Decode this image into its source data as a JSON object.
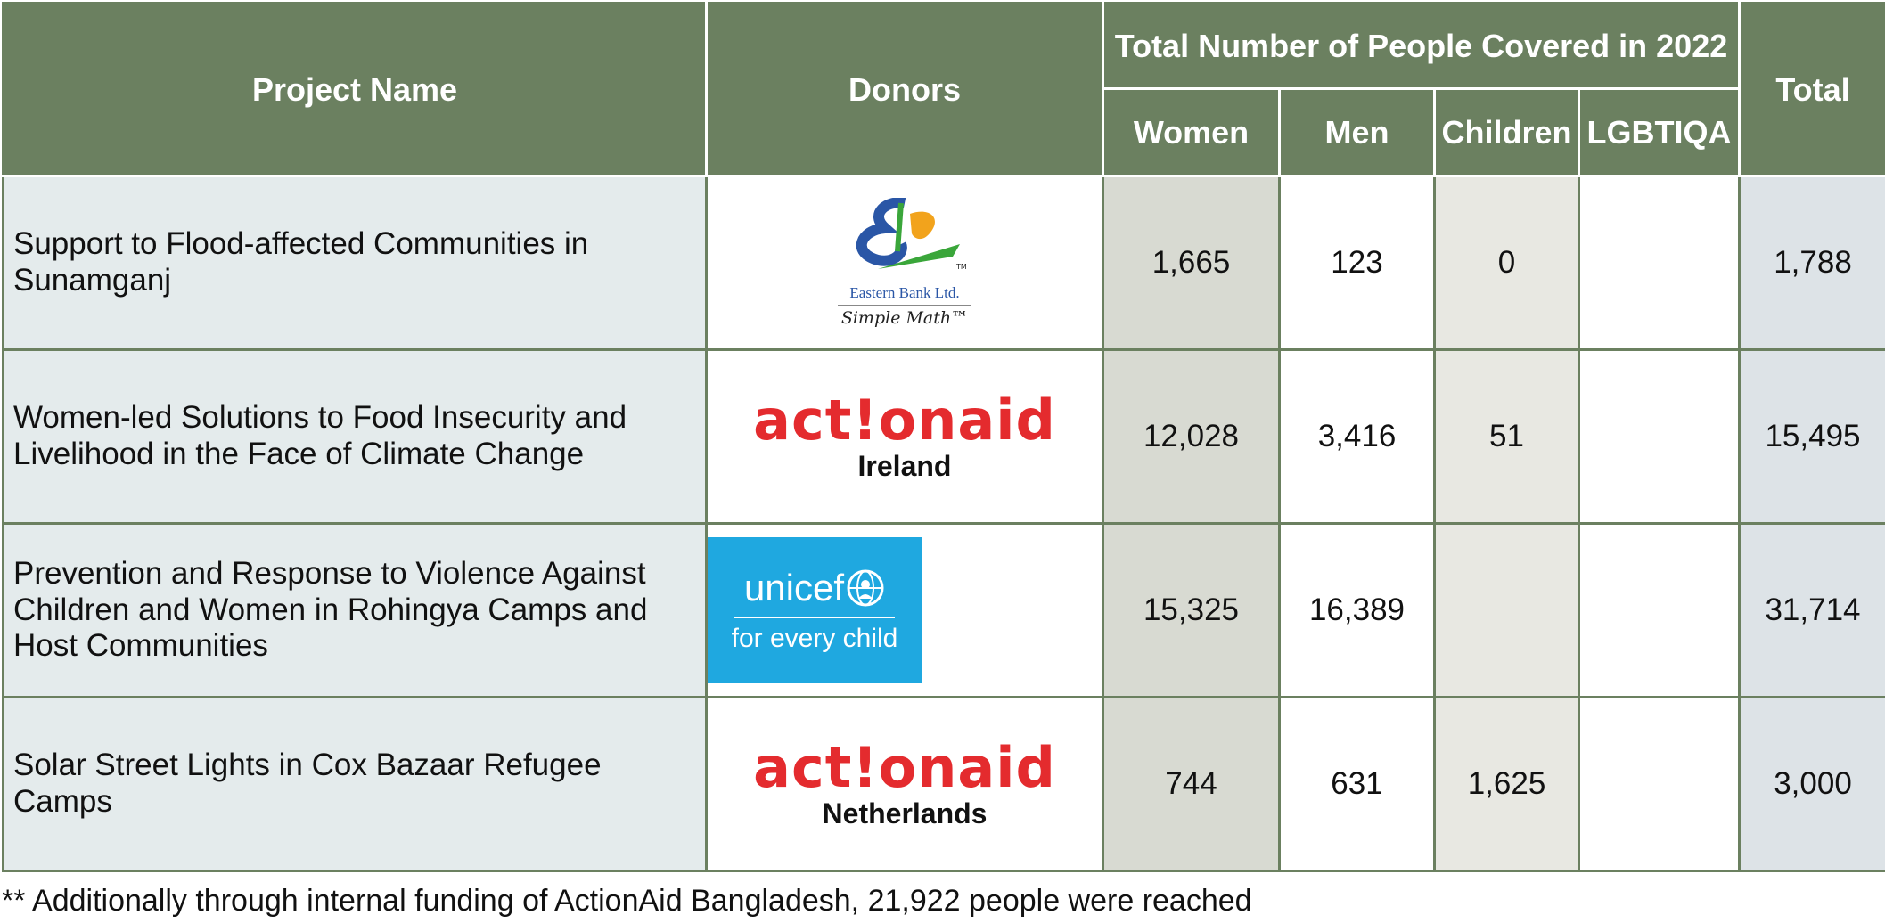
{
  "table": {
    "headers": {
      "project_name": "Project Name",
      "donors": "Donors",
      "group": "Total Number of People Covered in 2022",
      "women": "Women",
      "men": "Men",
      "children": "Children",
      "lgbtiqa": "LGBTIQA",
      "total": "Total"
    },
    "rows": [
      {
        "project": "Support to Flood-affected Communities in Sunamganj",
        "donor": "Eastern Bank Ltd.",
        "donor_tagline": "Simple Math™",
        "women": "1,665",
        "men": "123",
        "children": "0",
        "lgbtiqa": "",
        "total": "1,788"
      },
      {
        "project": "Women-led Solutions to Food Insecurity and Livelihood in the Face of Climate Change",
        "donor": "act!onaid",
        "donor_tagline": "Ireland",
        "women": "12,028",
        "men": "3,416",
        "children": "51",
        "lgbtiqa": "",
        "total": "15,495"
      },
      {
        "project": "Prevention and Response to Violence Against Children and Women in Rohingya Camps and Host Communities",
        "donor": "unicef",
        "donor_tagline": "for every child",
        "women": "15,325",
        "men": "16,389",
        "children": "",
        "lgbtiqa": "",
        "total": "31,714"
      },
      {
        "project": "Solar Street Lights in Cox Bazaar Refugee Camps",
        "donor": "act!onaid",
        "donor_tagline": "Netherlands",
        "women": "744",
        "men": "631",
        "children": "1,625",
        "lgbtiqa": "",
        "total": "3,000"
      }
    ]
  },
  "footnote": "** Additionally through internal funding of ActionAid Bangladesh, 21,922 people were reached",
  "colors": {
    "header_bg": "#6b8060",
    "project_bg": "#e4ebec",
    "women_bg": "#d8dad2",
    "children_bg": "#e8e8e2",
    "total_bg": "#dde3e7",
    "actionaid_red": "#e42b2e",
    "unicef_blue": "#1fa8e0",
    "ebl_blue": "#2a56a6",
    "ebl_orange": "#f2a31c",
    "ebl_green": "#3aa63a"
  }
}
